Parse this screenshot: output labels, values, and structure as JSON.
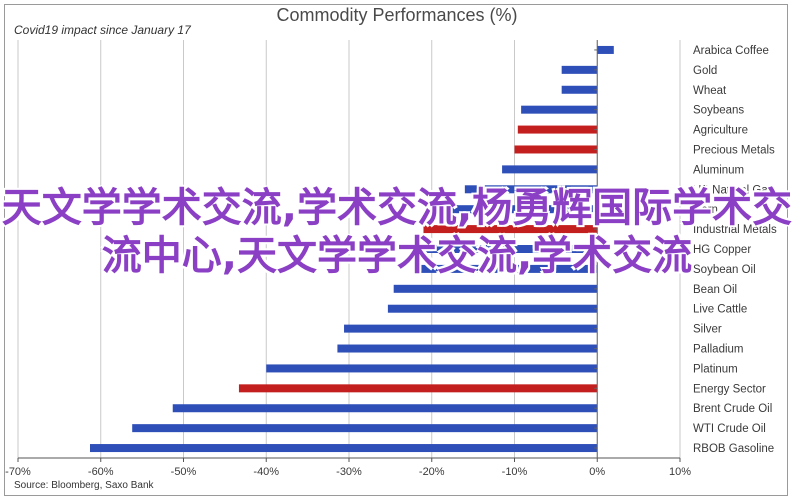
{
  "chart_data": {
    "type": "bar",
    "orientation": "horizontal",
    "title": "Commodity Performances (%)",
    "subtitle": "Covid19 impact since January 17",
    "source": "Source: Bloomberg, Saxo Bank",
    "xlim": [
      -70,
      10
    ],
    "x_ticks": [
      "-70%",
      "-60%",
      "-50%",
      "-40%",
      "-30%",
      "-20%",
      "-10%",
      "0%",
      "10%"
    ],
    "grid": "vertical",
    "categories": [
      "Arabica Coffee",
      "Gold",
      "Wheat",
      "Soybeans",
      "Agriculture",
      "Precious Metals",
      "Aluminum",
      "US Natural Gas",
      "Corn",
      "Industrial Metals",
      "HG Copper",
      "Soybean Oil",
      "Bean Oil",
      "Live Cattle",
      "Silver",
      "Palladium",
      "Platinum",
      "Energy Sector",
      "Brent Crude Oil",
      "WTI Crude Oil",
      "RBOB Gasoline"
    ],
    "values": [
      2,
      -4.3,
      -4.3,
      -9.2,
      -9.6,
      -10,
      -11.5,
      -16,
      -17.7,
      -21,
      -21.7,
      -21.9,
      -24.6,
      -25.3,
      -30.6,
      -31.4,
      -40,
      -43.3,
      -51.3,
      -56.2,
      -61.3
    ],
    "bar_colors": [
      "#2f4fb8",
      "#2f4fb8",
      "#2f4fb8",
      "#2f4fb8",
      "#c41f1f",
      "#c41f1f",
      "#2f4fb8",
      "#2f4fb8",
      "#2f4fb8",
      "#c41f1f",
      "#2f4fb8",
      "#2f4fb8",
      "#2f4fb8",
      "#2f4fb8",
      "#2f4fb8",
      "#2f4fb8",
      "#2f4fb8",
      "#c41f1f",
      "#2f4fb8",
      "#2f4fb8",
      "#2f4fb8"
    ]
  },
  "watermark": "天文学学术交流,学术交流,杨勇辉国际学术交流中心,天文学学术交流,学术交流"
}
